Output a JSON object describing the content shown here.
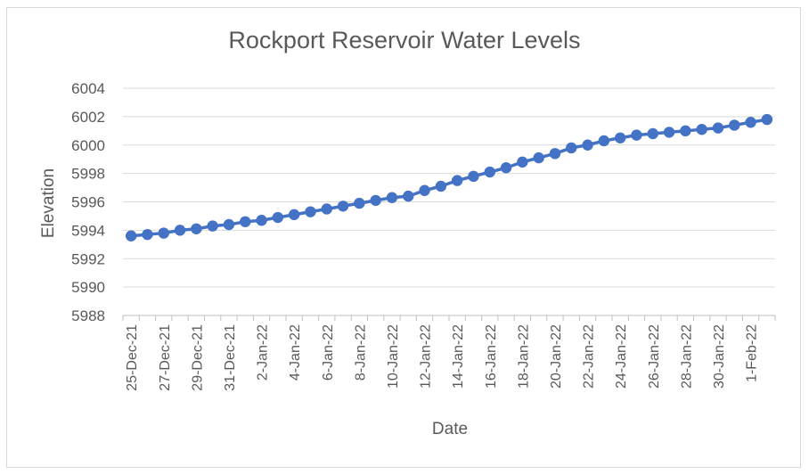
{
  "chart_data": {
    "type": "line",
    "title": "Rockport Reservoir Water Levels",
    "xlabel": "Date",
    "ylabel": "Elevation",
    "ylim": [
      5988,
      6004
    ],
    "yticks": [
      5988,
      5990,
      5992,
      5994,
      5996,
      5998,
      6000,
      6002,
      6004
    ],
    "x": [
      "25-Dec-21",
      "26-Dec-21",
      "27-Dec-21",
      "28-Dec-21",
      "29-Dec-21",
      "30-Dec-21",
      "31-Dec-21",
      "1-Jan-22",
      "2-Jan-22",
      "3-Jan-22",
      "4-Jan-22",
      "5-Jan-22",
      "6-Jan-22",
      "7-Jan-22",
      "8-Jan-22",
      "9-Jan-22",
      "10-Jan-22",
      "11-Jan-22",
      "12-Jan-22",
      "13-Jan-22",
      "14-Jan-22",
      "15-Jan-22",
      "16-Jan-22",
      "17-Jan-22",
      "18-Jan-22",
      "19-Jan-22",
      "20-Jan-22",
      "21-Jan-22",
      "22-Jan-22",
      "23-Jan-22",
      "24-Jan-22",
      "25-Jan-22",
      "26-Jan-22",
      "27-Jan-22",
      "28-Jan-22",
      "29-Jan-22",
      "30-Jan-22",
      "31-Jan-22",
      "1-Feb-22",
      "2-Feb-22"
    ],
    "xtick_labels": [
      "25-Dec-21",
      "27-Dec-21",
      "29-Dec-21",
      "31-Dec-21",
      "2-Jan-22",
      "4-Jan-22",
      "6-Jan-22",
      "8-Jan-22",
      "10-Jan-22",
      "12-Jan-22",
      "14-Jan-22",
      "16-Jan-22",
      "18-Jan-22",
      "20-Jan-22",
      "22-Jan-22",
      "24-Jan-22",
      "26-Jan-22",
      "28-Jan-22",
      "30-Jan-22",
      "1-Feb-22"
    ],
    "series": [
      {
        "name": "",
        "color": "#4472c4",
        "values": [
          5993.6,
          5993.7,
          5993.8,
          5994.0,
          5994.1,
          5994.3,
          5994.4,
          5994.6,
          5994.7,
          5994.9,
          5995.1,
          5995.3,
          5995.5,
          5995.7,
          5995.9,
          5996.1,
          5996.3,
          5996.4,
          5996.8,
          5997.1,
          5997.5,
          5997.8,
          5998.1,
          5998.4,
          5998.8,
          5999.1,
          5999.4,
          5999.8,
          6000.0,
          6000.3,
          6000.5,
          6000.7,
          6000.8,
          6000.9,
          6001.0,
          6001.1,
          6001.2,
          6001.4,
          6001.6,
          6001.8
        ]
      }
    ],
    "grid": true,
    "legend": "none"
  }
}
